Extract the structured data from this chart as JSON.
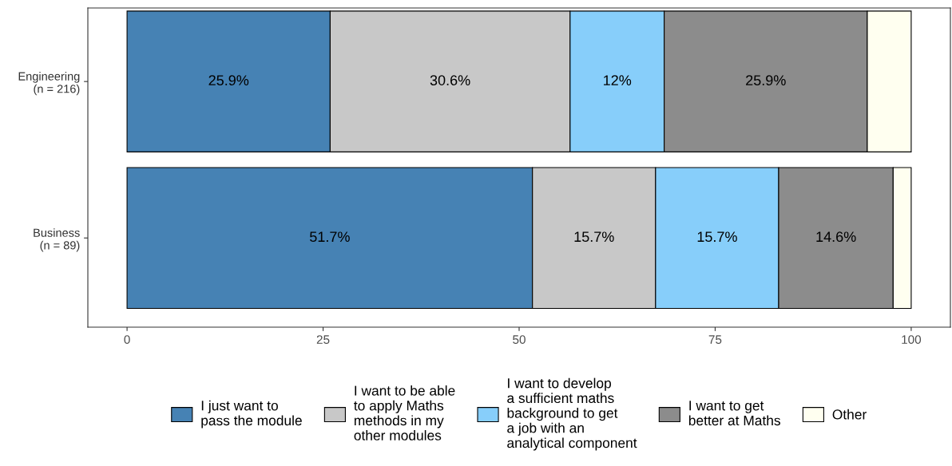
{
  "chart_data": {
    "type": "bar",
    "orientation": "horizontal",
    "stacked": true,
    "categories": [
      "Engineering\n(n = 216)",
      "Business\n(n = 89)"
    ],
    "series": [
      {
        "name": "I just want to\npass the module",
        "color": "#4682b4",
        "values": [
          25.9,
          51.7
        ],
        "value_labels": [
          "25.9%",
          "51.7%"
        ]
      },
      {
        "name": "I want to be able\nto apply Maths\nmethods in my\nother modules",
        "color": "#c8c8c8",
        "values": [
          30.6,
          15.7
        ],
        "value_labels": [
          "30.6%",
          "15.7%"
        ]
      },
      {
        "name": "I want to develop\na sufficient maths\nbackground to get\na job with an\nanalytical component",
        "color": "#87cefa",
        "values": [
          12,
          15.7
        ],
        "value_labels": [
          "12%",
          "15.7%"
        ]
      },
      {
        "name": "I want to get\nbetter at Maths",
        "color": "#8c8c8c",
        "values": [
          25.9,
          14.6
        ],
        "value_labels": [
          "25.9%",
          "14.6%"
        ]
      },
      {
        "name": "Other",
        "color": "#fffff0",
        "values": [
          5.6,
          2.3
        ],
        "value_labels": [
          null,
          null
        ]
      }
    ],
    "xlim": [
      -5,
      105
    ],
    "xticks": [
      0,
      25,
      50,
      75,
      100
    ],
    "grid": false,
    "legend": "bottom"
  }
}
